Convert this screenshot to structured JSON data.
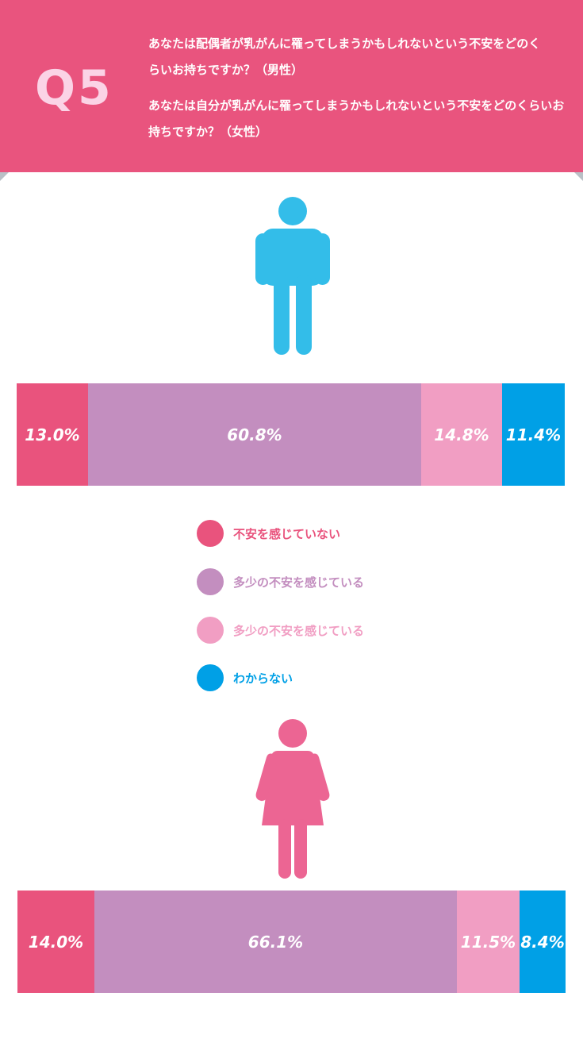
{
  "header": {
    "badge": "Q5",
    "question_male": "あなたは配偶者が乳がんに罹ってしまうかもしれないという不安をどのくらいお持ちですか？（男性）",
    "question_female": "あなたは自分が乳がんに罹ってしまうかもしれないという不安をどのくらいお持ちですか？（女性）"
  },
  "colors": {
    "header_bg": "#e9547e",
    "badge": "#fbd3e6",
    "male_icon": "#33bde9",
    "female_icon": "#ec6593"
  },
  "icons": {
    "male": "man-figure-icon",
    "female": "woman-figure-icon"
  },
  "chart_data": [
    {
      "type": "bar",
      "stacked": true,
      "orientation": "horizontal",
      "group": "male",
      "segments": [
        {
          "legend_index": 0,
          "value": 13.0,
          "label": "13.0%",
          "color": "#e9537d"
        },
        {
          "legend_index": 1,
          "value": 60.8,
          "label": "60.8%",
          "color": "#c38ebf"
        },
        {
          "legend_index": 2,
          "value": 14.8,
          "label": "14.8%",
          "color": "#f19ec3"
        },
        {
          "legend_index": 3,
          "value": 11.4,
          "label": "11.4%",
          "color": "#00a0e6"
        }
      ]
    },
    {
      "type": "bar",
      "stacked": true,
      "orientation": "horizontal",
      "group": "female",
      "segments": [
        {
          "legend_index": 0,
          "value": 14.0,
          "label": "14.0%",
          "color": "#e9537d"
        },
        {
          "legend_index": 1,
          "value": 66.1,
          "label": "66.1%",
          "color": "#c38ebf"
        },
        {
          "legend_index": 2,
          "value": 11.5,
          "label": "11.5%",
          "color": "#f19ec3"
        },
        {
          "legend_index": 3,
          "value": 8.4,
          "label": "8.4%",
          "color": "#00a0e6"
        }
      ]
    }
  ],
  "legend": [
    {
      "label": "不安を感じていない",
      "color": "#e9537d"
    },
    {
      "label": "多少の不安を感じている",
      "color": "#c38ebf"
    },
    {
      "label": "多少の不安を感じている",
      "color": "#f19ec3"
    },
    {
      "label": "わからない",
      "color": "#00a0e6"
    }
  ]
}
